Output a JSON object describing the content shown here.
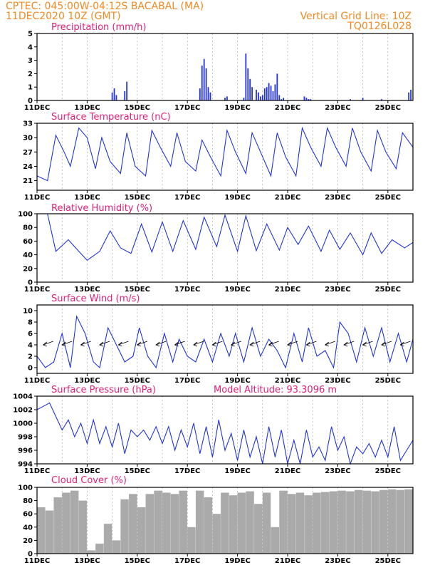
{
  "header": {
    "line1": "CPTEC:   045:00W-04:12S   BACABAL (MA)",
    "line2": "11DEC2020 10Z (GMT)",
    "right1": "Vertical Grid Line: 10Z",
    "right2": "TQ0126L028"
  },
  "colors": {
    "header": "#f08a24",
    "title": "#e0207a",
    "series": "#2233dd",
    "cloud": "#aaaaaa",
    "grid": "#999999"
  },
  "x_axis": {
    "ticks": [
      "11DEC",
      "13DEC",
      "15DEC",
      "17DEC",
      "19DEC",
      "21DEC",
      "23DEC",
      "25DEC"
    ],
    "range_hours": [
      0,
      360
    ]
  },
  "chart_data": [
    {
      "type": "bar",
      "title": "Precipitation (mm/h)",
      "ylim": [
        0,
        5
      ],
      "yticks": [
        "0",
        "1",
        "2",
        "3",
        "4",
        "5"
      ],
      "x_hours": [
        72,
        74,
        76,
        84,
        86,
        156,
        158,
        160,
        162,
        164,
        166,
        180,
        182,
        198,
        200,
        202,
        204,
        206,
        210,
        212,
        214,
        216,
        218,
        220,
        222,
        224,
        226,
        228,
        230,
        232,
        234,
        236,
        256,
        258,
        260,
        262,
        300,
        312,
        330,
        356,
        358
      ],
      "values": [
        0.6,
        0.9,
        0.4,
        0.7,
        1.4,
        0.9,
        2.6,
        3.1,
        2.4,
        1.0,
        0.6,
        0.2,
        0.3,
        0.2,
        3.5,
        2.4,
        1.6,
        1.0,
        0.8,
        0.6,
        0.3,
        0.4,
        0.9,
        1.0,
        1.3,
        1.1,
        0.7,
        1.2,
        2.0,
        0.4,
        0.1,
        0.2,
        0.3,
        0.2,
        0.1,
        0.1,
        0.1,
        0.2,
        0.1,
        0.6,
        0.8
      ]
    },
    {
      "type": "line",
      "title": "Surface Temperature (nC)",
      "ylim": [
        19,
        33
      ],
      "yticks": [
        "21",
        "24",
        "27",
        "30",
        "33"
      ],
      "x_hours": [
        0,
        10,
        18,
        26,
        32,
        40,
        48,
        56,
        62,
        70,
        80,
        86,
        94,
        104,
        110,
        118,
        128,
        134,
        142,
        152,
        158,
        166,
        176,
        182,
        190,
        200,
        206,
        214,
        224,
        230,
        238,
        248,
        254,
        262,
        272,
        278,
        286,
        296,
        302,
        310,
        320,
        326,
        334,
        344,
        350,
        360
      ],
      "values": [
        22,
        21,
        30.5,
        27,
        24,
        32,
        30,
        23.5,
        30,
        25,
        22.5,
        31,
        24,
        22,
        31.5,
        28,
        24,
        31,
        25,
        23,
        29.5,
        26,
        22,
        31.5,
        27,
        22.5,
        31,
        27,
        22,
        31,
        26,
        22,
        32,
        28,
        24,
        32,
        28,
        24,
        32,
        27,
        23,
        31.5,
        27,
        23.5,
        31,
        28
      ]
    },
    {
      "type": "line",
      "title": "Relative Humidity (%)",
      "ylim": [
        0,
        100
      ],
      "yticks": [
        "0",
        "20",
        "40",
        "60",
        "80",
        "100"
      ],
      "x_hours": [
        0,
        10,
        18,
        30,
        40,
        48,
        60,
        70,
        80,
        90,
        100,
        110,
        120,
        130,
        140,
        152,
        160,
        172,
        180,
        192,
        200,
        210,
        220,
        232,
        240,
        250,
        260,
        272,
        280,
        290,
        300,
        312,
        320,
        330,
        340,
        352,
        360
      ],
      "values": [
        100,
        100,
        45,
        62,
        45,
        32,
        45,
        75,
        50,
        42,
        85,
        44,
        88,
        45,
        90,
        48,
        95,
        52,
        98,
        45,
        97,
        46,
        85,
        47,
        80,
        55,
        82,
        45,
        76,
        48,
        72,
        40,
        72,
        42,
        62,
        50,
        58
      ]
    },
    {
      "type": "line",
      "title": "Surface Wind (m/s)",
      "ylim": [
        -1,
        11
      ],
      "yticks": [
        "0",
        "2",
        "4",
        "6",
        "8",
        "10"
      ],
      "x_hours": [
        0,
        8,
        16,
        24,
        32,
        38,
        46,
        54,
        60,
        68,
        76,
        84,
        92,
        98,
        106,
        114,
        122,
        130,
        136,
        144,
        152,
        160,
        168,
        176,
        184,
        190,
        198,
        206,
        214,
        222,
        230,
        238,
        246,
        254,
        260,
        268,
        276,
        284,
        290,
        298,
        306,
        314,
        322,
        330,
        338,
        346,
        354,
        360
      ],
      "values": [
        2,
        0,
        1,
        6,
        0,
        9,
        6,
        1,
        0,
        7,
        4,
        1,
        2,
        7,
        2,
        0,
        6,
        1,
        5,
        2,
        1,
        5,
        1,
        6,
        2,
        6,
        1,
        7,
        2,
        5,
        3,
        0,
        6,
        1,
        7,
        2,
        3,
        0,
        8,
        6,
        1,
        7,
        2,
        7,
        1,
        6,
        1,
        5
      ]
    },
    {
      "type": "line",
      "title": "Surface Pressure (hPa)",
      "annotation": "Model Altitude: 93.3096 m",
      "ylim": [
        994,
        1004
      ],
      "yticks": [
        "994",
        "996",
        "998",
        "1000",
        "1002",
        "1004"
      ],
      "x_hours": [
        0,
        6,
        12,
        18,
        24,
        30,
        36,
        42,
        48,
        54,
        60,
        66,
        72,
        78,
        84,
        90,
        96,
        102,
        108,
        114,
        120,
        126,
        132,
        138,
        144,
        150,
        156,
        162,
        168,
        174,
        180,
        186,
        192,
        198,
        204,
        210,
        216,
        222,
        228,
        234,
        240,
        246,
        252,
        258,
        264,
        270,
        276,
        282,
        288,
        294,
        300,
        306,
        312,
        318,
        324,
        330,
        336,
        342,
        348,
        354,
        360
      ],
      "values": [
        1002,
        1002.5,
        1003,
        1001,
        999,
        1000.5,
        998,
        1000,
        997,
        1000.5,
        997,
        999.5,
        996.5,
        1000,
        995.5,
        999,
        998,
        999,
        997.5,
        999.5,
        997,
        999.5,
        996,
        999,
        996.5,
        1000,
        995.5,
        999.5,
        995,
        1000.5,
        996,
        998.5,
        994.5,
        999,
        995,
        998,
        994,
        999.5,
        995,
        999,
        994,
        997.5,
        994,
        999,
        995,
        996.5,
        994.5,
        999.5,
        996,
        998,
        994,
        996.5,
        995.5,
        997,
        995,
        997.5,
        995,
        999.5,
        994.5,
        996,
        997.5
      ]
    },
    {
      "type": "bar",
      "title": "Cloud Cover (%)",
      "ylim": [
        0,
        100
      ],
      "yticks": [
        "0",
        "20",
        "40",
        "60",
        "80",
        "100"
      ],
      "x_hours": [
        0,
        8,
        16,
        24,
        32,
        40,
        48,
        56,
        64,
        72,
        80,
        88,
        96,
        104,
        112,
        120,
        128,
        136,
        144,
        152,
        160,
        168,
        176,
        184,
        192,
        200,
        208,
        216,
        224,
        232,
        240,
        248,
        256,
        264,
        272,
        280,
        288,
        296,
        304,
        312,
        320,
        328,
        336,
        344,
        352,
        360
      ],
      "values": [
        70,
        65,
        85,
        92,
        95,
        80,
        5,
        15,
        45,
        20,
        82,
        90,
        70,
        90,
        95,
        92,
        90,
        95,
        40,
        95,
        85,
        60,
        92,
        88,
        92,
        94,
        75,
        92,
        40,
        95,
        90,
        92,
        88,
        92,
        93,
        94,
        95,
        94,
        96,
        95,
        94,
        96,
        97,
        96,
        97,
        98
      ]
    }
  ]
}
